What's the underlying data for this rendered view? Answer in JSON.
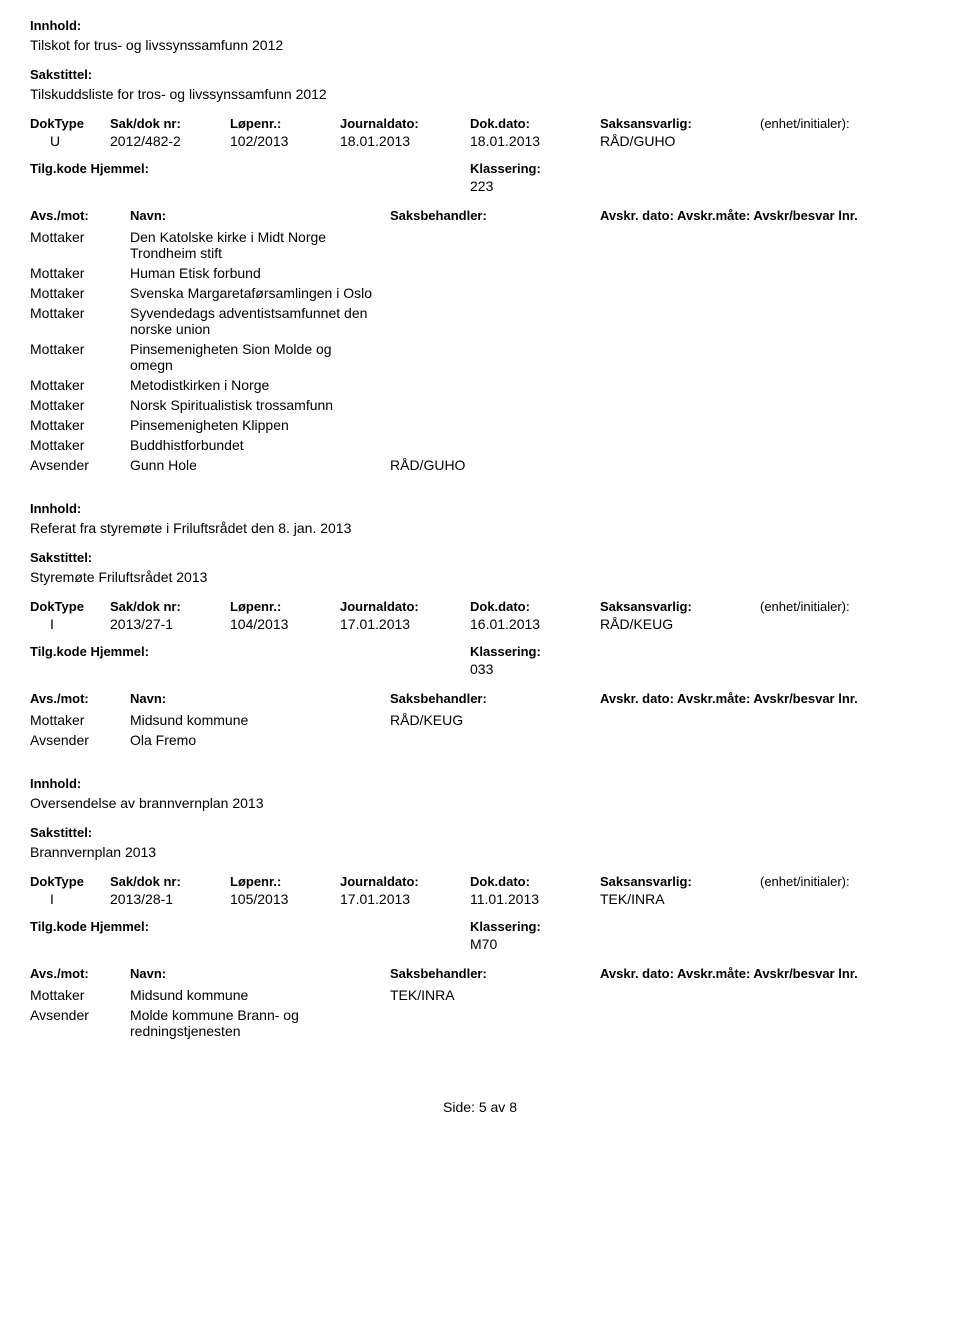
{
  "labels": {
    "innhold": "Innhold:",
    "sakstittel": "Sakstittel:",
    "doktype": "DokType",
    "sakdok": "Sak/dok nr:",
    "lopenr": "Løpenr.:",
    "jdato": "Journaldato:",
    "ddato": "Dok.dato:",
    "saksansv": "Saksansvarlig:",
    "enhet": "(enhet/initialer):",
    "tilgkode": "Tilg.kode",
    "hjemmel": "Hjemmel:",
    "klassering": "Klassering:",
    "avsmot": "Avs./mot:",
    "navn": "Navn:",
    "saksbehandler": "Saksbehandler:",
    "avskr": "Avskr. dato: Avskr.måte: Avskr/besvar lnr."
  },
  "records": [
    {
      "innhold": "Tilskot for trus- og livssynssamfunn 2012",
      "sakstittel": "Tilskuddsliste for tros- og livssynssamfunn 2012",
      "doktype": "U",
      "sakdok": "2012/482-2",
      "lopenr": "102/2013",
      "jdato": "18.01.2013",
      "ddato": "18.01.2013",
      "saksansv": "RÅD/GUHO",
      "klassering": "223",
      "parties": [
        {
          "role": "Mottaker",
          "navn": "Den Katolske kirke i Midt Norge Trondheim stift",
          "sb": ""
        },
        {
          "role": "Mottaker",
          "navn": "Human Etisk forbund",
          "sb": ""
        },
        {
          "role": "Mottaker",
          "navn": "Svenska Margaretaførsamlingen i Oslo",
          "sb": ""
        },
        {
          "role": "Mottaker",
          "navn": "Syvendedags adventistsamfunnet den norske union",
          "sb": ""
        },
        {
          "role": "Mottaker",
          "navn": "Pinsemenigheten Sion Molde og omegn",
          "sb": ""
        },
        {
          "role": "Mottaker",
          "navn": "Metodistkirken i Norge",
          "sb": ""
        },
        {
          "role": "Mottaker",
          "navn": "Norsk Spiritualistisk trossamfunn",
          "sb": ""
        },
        {
          "role": "Mottaker",
          "navn": "Pinsemenigheten Klippen",
          "sb": ""
        },
        {
          "role": "Mottaker",
          "navn": "Buddhistforbundet",
          "sb": ""
        },
        {
          "role": "Avsender",
          "navn": "Gunn Hole",
          "sb": "RÅD/GUHO"
        }
      ]
    },
    {
      "innhold": "Referat fra styremøte i Friluftsrådet den 8. jan. 2013",
      "sakstittel": "Styremøte Friluftsrådet  2013",
      "doktype": "I",
      "sakdok": "2013/27-1",
      "lopenr": "104/2013",
      "jdato": "17.01.2013",
      "ddato": "16.01.2013",
      "saksansv": "RÅD/KEUG",
      "klassering": "033",
      "parties": [
        {
          "role": "Mottaker",
          "navn": "Midsund kommune",
          "sb": "RÅD/KEUG"
        },
        {
          "role": "Avsender",
          "navn": "Ola Fremo",
          "sb": ""
        }
      ]
    },
    {
      "innhold": "Oversendelse av brannvernplan 2013",
      "sakstittel": "Brannvernplan 2013",
      "doktype": "I",
      "sakdok": "2013/28-1",
      "lopenr": "105/2013",
      "jdato": "17.01.2013",
      "ddato": "11.01.2013",
      "saksansv": "TEK/INRA",
      "klassering": "M70",
      "parties": [
        {
          "role": "Mottaker",
          "navn": "Midsund kommune",
          "sb": "TEK/INRA"
        },
        {
          "role": "Avsender",
          "navn": "Molde kommune   Brann- og redningstjenesten",
          "sb": ""
        }
      ]
    }
  ],
  "footer": {
    "side": "Side:",
    "page": "5",
    "av": "av",
    "total": "8"
  }
}
